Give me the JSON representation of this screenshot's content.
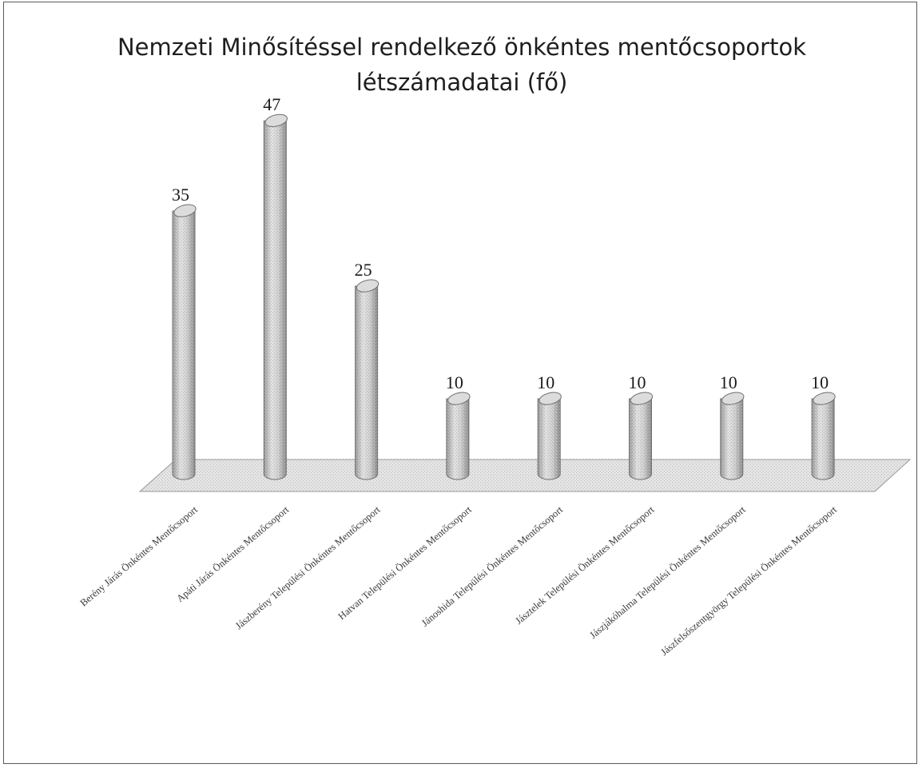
{
  "chart_data": {
    "type": "bar",
    "title_lines": [
      "Nemzeti Minősítéssel rendelkező önkéntes mentőcsoportok",
      "létszámadatai (fő)"
    ],
    "categories": [
      "Berény Járás Önkéntes Mentőcsoport",
      "Apáti Járás Önkéntes Mentőcsoport",
      "Jászberény Települési Önkéntes Mentőcsoport",
      "Hatvan Települési Önkéntes Mentőcsoport",
      "Jánoshida Települési Önkéntes Mentőcsoport",
      "Jásztelek Települési Önkéntes Mentőcsoport",
      "Jászjákóhalma Települési Önkéntes Mentőcsoport",
      "Jászfelsőszentgyörgy Települési Önkéntes Mentőcsoport"
    ],
    "values": [
      35,
      47,
      25,
      10,
      10,
      10,
      10,
      10
    ],
    "value_labels": [
      "35",
      "47",
      "25",
      "10",
      "10",
      "10",
      "10",
      "10"
    ],
    "ylim": [
      0,
      50
    ],
    "grid": false,
    "legend": "none",
    "style": "3d-cylinder",
    "colors": {
      "bar_fill": "#c8c8c8",
      "bar_edge": "#6e6e6e",
      "floor_fill": "#e3e3e3",
      "frame": "#5a5a5a"
    }
  }
}
